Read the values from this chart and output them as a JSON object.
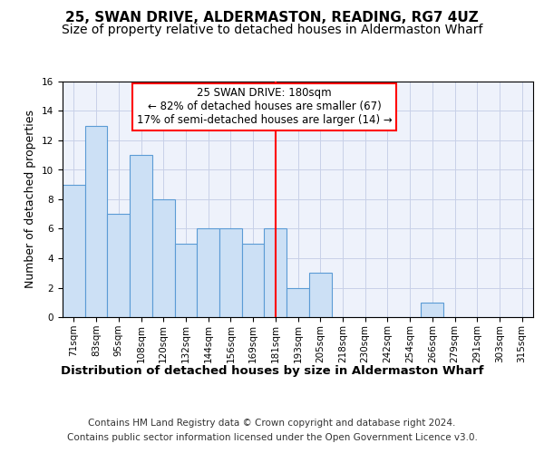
{
  "title": "25, SWAN DRIVE, ALDERMASTON, READING, RG7 4UZ",
  "subtitle": "Size of property relative to detached houses in Aldermaston Wharf",
  "xlabel": "Distribution of detached houses by size in Aldermaston Wharf",
  "ylabel": "Number of detached properties",
  "categories": [
    "71sqm",
    "83sqm",
    "95sqm",
    "108sqm",
    "120sqm",
    "132sqm",
    "144sqm",
    "156sqm",
    "169sqm",
    "181sqm",
    "193sqm",
    "205sqm",
    "218sqm",
    "230sqm",
    "242sqm",
    "254sqm",
    "266sqm",
    "279sqm",
    "291sqm",
    "303sqm",
    "315sqm"
  ],
  "values": [
    9,
    13,
    7,
    11,
    8,
    5,
    6,
    6,
    5,
    6,
    2,
    3,
    0,
    0,
    0,
    0,
    1,
    0,
    0,
    0,
    0
  ],
  "bar_color": "#cce0f5",
  "bar_edge_color": "#5b9bd5",
  "reference_line_x": 9,
  "annotation_text": "25 SWAN DRIVE: 180sqm\n← 82% of detached houses are smaller (67)\n17% of semi-detached houses are larger (14) →",
  "annotation_box_color": "white",
  "annotation_box_edge_color": "red",
  "ylim": [
    0,
    16
  ],
  "yticks": [
    0,
    2,
    4,
    6,
    8,
    10,
    12,
    14,
    16
  ],
  "footer_line1": "Contains HM Land Registry data © Crown copyright and database right 2024.",
  "footer_line2": "Contains public sector information licensed under the Open Government Licence v3.0.",
  "background_color": "#eef2fb",
  "grid_color": "#c8d0e8",
  "title_fontsize": 11,
  "subtitle_fontsize": 10,
  "xlabel_fontsize": 9.5,
  "ylabel_fontsize": 9,
  "tick_fontsize": 7.5,
  "annotation_fontsize": 8.5,
  "footer_fontsize": 7.5
}
